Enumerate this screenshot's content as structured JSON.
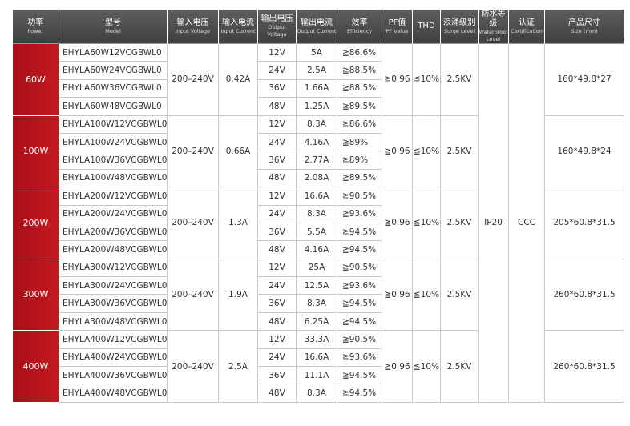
{
  "header": [
    {
      "zh": "功率",
      "en": "Power"
    },
    {
      "zh": "型号",
      "en": "Model"
    },
    {
      "zh": "输入电压",
      "en": "Input Voltage"
    },
    {
      "zh": "输入电流",
      "en": "Input Current"
    },
    {
      "zh": "输出电压",
      "en": "Output Voltage"
    },
    {
      "zh": "输出电流",
      "en": "Output Current"
    },
    {
      "zh": "效率",
      "en": "Efficiency"
    },
    {
      "zh": "PF值",
      "en": "PF value"
    },
    {
      "zh": "THD"
    },
    {
      "zh": "浪涌级别",
      "en": "Surge Level"
    },
    {
      "zh": "防水等级",
      "en": "Waterproof Level"
    },
    {
      "zh": "认证",
      "en": "Certification"
    },
    {
      "zh": "产品尺寸",
      "en": "Size (mm)"
    }
  ],
  "waterproof": "IP20",
  "certification": "CCC",
  "groups": [
    {
      "power": "60W",
      "input_voltage": "200–240V",
      "input_current": "0.42A",
      "pf": "≧0.96",
      "thd": "≦10%",
      "surge": "2.5KV",
      "size": "160*49.8*27",
      "rows": [
        {
          "model": "EHYLA60W12VCGBWL0",
          "output_voltage": "12V",
          "output_current": "5A",
          "efficiency": "≧86.6%"
        },
        {
          "model": "EHYLA60W24VCGBWL0",
          "output_voltage": "24V",
          "output_current": "2.5A",
          "efficiency": "≧88.5%"
        },
        {
          "model": "EHYLA60W36VCGBWL0",
          "output_voltage": "36V",
          "output_current": "1.66A",
          "efficiency": "≧88.5%"
        },
        {
          "model": "EHYLA60W48VCGBWL0",
          "output_voltage": "48V",
          "output_current": "1.25A",
          "efficiency": "≧89.5%"
        }
      ]
    },
    {
      "power": "100W",
      "input_voltage": "200–240V",
      "input_current": "0.66A",
      "pf": "≧0.96",
      "thd": "≦10%",
      "surge": "2.5KV",
      "size": "160*49.8*24",
      "rows": [
        {
          "model": "EHYLA100W12VCGBWL0",
          "output_voltage": "12V",
          "output_current": "8.3A",
          "efficiency": "≧86.6%"
        },
        {
          "model": "EHYLA100W24VCGBWL0",
          "output_voltage": "24V",
          "output_current": "4.16A",
          "efficiency": "≧89%"
        },
        {
          "model": "EHYLA100W36VCGBWL0",
          "output_voltage": "36V",
          "output_current": "2.77A",
          "efficiency": "≧89%"
        },
        {
          "model": "EHYLA100W48VCGBWL0",
          "output_voltage": "48V",
          "output_current": "2.08A",
          "efficiency": "≧89.5%"
        }
      ]
    },
    {
      "power": "200W",
      "input_voltage": "200–240V",
      "input_current": "1.3A",
      "pf": "≧0.96",
      "thd": "≦10%",
      "surge": "2.5KV",
      "size": "205*60.8*31.5",
      "rows": [
        {
          "model": "EHYLA200W12VCGBWL0",
          "output_voltage": "12V",
          "output_current": "16.6A",
          "efficiency": "≧90.5%"
        },
        {
          "model": "EHYLA200W24VCGBWL0",
          "output_voltage": "24V",
          "output_current": "8.3A",
          "efficiency": "≧93.6%"
        },
        {
          "model": "EHYLA200W36VCGBWL0",
          "output_voltage": "36V",
          "output_current": "5.5A",
          "efficiency": "≧94.5%"
        },
        {
          "model": "EHYLA200W48VCGBWL0",
          "output_voltage": "48V",
          "output_current": "4.16A",
          "efficiency": "≧94.5%"
        }
      ]
    },
    {
      "power": "300W",
      "input_voltage": "200–240V",
      "input_current": "1.9A",
      "pf": "≧0.96",
      "thd": "≦10%",
      "surge": "2.5KV",
      "size": "260*60.8*31.5",
      "rows": [
        {
          "model": "EHYLA300W12VCGBWL0",
          "output_voltage": "12V",
          "output_current": "25A",
          "efficiency": "≧90.5%"
        },
        {
          "model": "EHYLA300W24VCGBWL0",
          "output_voltage": "24V",
          "output_current": "12.5A",
          "efficiency": "≧93.6%"
        },
        {
          "model": "EHYLA300W36VCGBWL0",
          "output_voltage": "36V",
          "output_current": "8.3A",
          "efficiency": "≧94.5%"
        },
        {
          "model": "EHYLA300W48VCGBWL0",
          "output_voltage": "48V",
          "output_current": "6.25A",
          "efficiency": "≧94.5%"
        }
      ]
    },
    {
      "power": "400W",
      "input_voltage": "200–240V",
      "input_current": "2.5A",
      "pf": "≧0.96",
      "thd": "≦10%",
      "surge": "2.5KV",
      "size": "260*60.8*31.5",
      "rows": [
        {
          "model": "EHYLA400W12VCGBWL0",
          "output_voltage": "12V",
          "output_current": "33.3A",
          "efficiency": "≧90.5%"
        },
        {
          "model": "EHYLA400W24VCGBWL0",
          "output_voltage": "24V",
          "output_current": "16.6A",
          "efficiency": "≧93.6%"
        },
        {
          "model": "EHYLA400W36VCGBWL0",
          "output_voltage": "36V",
          "output_current": "11.1A",
          "efficiency": "≧94.5%"
        },
        {
          "model": "EHYLA400W48VCGBWL0",
          "output_voltage": "48V",
          "output_current": "8.3A",
          "efficiency": "≧94.5%"
        }
      ]
    }
  ]
}
